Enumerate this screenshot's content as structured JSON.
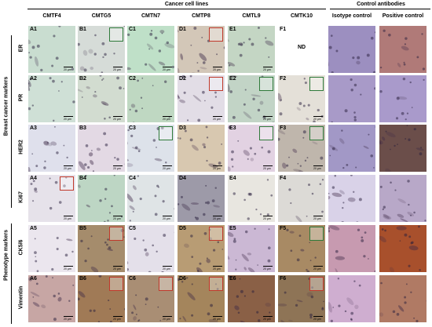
{
  "headers": {
    "group_cancer": "Cancer cell lines",
    "group_control": "Control antibodies",
    "columns": [
      "CMTF4",
      "CMTG5",
      "CMTN7",
      "CMTP8",
      "CMTL9",
      "CMTK10",
      "Isotype control",
      "Positive control"
    ]
  },
  "side_groups": {
    "breast": "Breast cancer markers",
    "phenotype": "Phenotype markers"
  },
  "rows": [
    {
      "label": "ER",
      "cells": [
        {
          "id": "A1",
          "bg": "#c9ddd0",
          "inset": ""
        },
        {
          "id": "B1",
          "bg": "#d6dcd8",
          "inset": "#2f7a3a"
        },
        {
          "id": "C1",
          "bg": "#bfe0c8",
          "inset": ""
        },
        {
          "id": "D1",
          "bg": "#d3c7b8",
          "inset": "#c0392b"
        },
        {
          "id": "E1",
          "bg": "#c4d6c4",
          "inset": ""
        },
        {
          "id": "F1",
          "bg": "#ffffff",
          "inset": "",
          "nd": "ND"
        },
        {
          "id": "",
          "bg": "#9c8fc0",
          "inset": ""
        },
        {
          "id": "",
          "bg": "#b07a78",
          "inset": ""
        }
      ]
    },
    {
      "label": "PR",
      "cells": [
        {
          "id": "A2",
          "bg": "#cfe0d6",
          "inset": ""
        },
        {
          "id": "B2",
          "bg": "#d2dcd0",
          "inset": ""
        },
        {
          "id": "C2",
          "bg": "#bfd8c2",
          "inset": ""
        },
        {
          "id": "D2",
          "bg": "#e2dde6",
          "inset": "#c0392b"
        },
        {
          "id": "E2",
          "bg": "#c2d4c6",
          "inset": "#2f7a3a"
        },
        {
          "id": "F2",
          "bg": "#e4e0d8",
          "inset": "#2f7a3a"
        },
        {
          "id": "",
          "bg": "#a89ac8",
          "inset": ""
        },
        {
          "id": "",
          "bg": "#a99acb",
          "inset": ""
        }
      ]
    },
    {
      "label": "HER2",
      "cells": [
        {
          "id": "A3",
          "bg": "#dfe0ec",
          "inset": ""
        },
        {
          "id": "B3",
          "bg": "#e3d9e4",
          "inset": ""
        },
        {
          "id": "C3",
          "bg": "#dde2ea",
          "inset": "#2f7a3a"
        },
        {
          "id": "D3",
          "bg": "#d8c8b0",
          "inset": ""
        },
        {
          "id": "E3",
          "bg": "#e2d2e2",
          "inset": "#2f7a3a"
        },
        {
          "id": "F3",
          "bg": "#bfb6ac",
          "inset": "#2f7a3a"
        },
        {
          "id": "",
          "bg": "#a298c6",
          "inset": ""
        },
        {
          "id": "",
          "bg": "#6b4e4a",
          "inset": ""
        }
      ]
    },
    {
      "label": "Ki67",
      "cells": [
        {
          "id": "A4",
          "bg": "#e6e2ea",
          "inset": "#c0392b"
        },
        {
          "id": "B4",
          "bg": "#bdd6c4",
          "inset": ""
        },
        {
          "id": "C4",
          "bg": "#dfe4e6",
          "inset": ""
        },
        {
          "id": "D4",
          "bg": "#9d9aa8",
          "inset": ""
        },
        {
          "id": "E4",
          "bg": "#e8e6e0",
          "inset": ""
        },
        {
          "id": "F4",
          "bg": "#dcdad6",
          "inset": ""
        },
        {
          "id": "",
          "bg": "#d9d2e8",
          "inset": ""
        },
        {
          "id": "",
          "bg": "#b8a8c8",
          "inset": ""
        }
      ]
    },
    {
      "label": "CK5/6",
      "cells": [
        {
          "id": "A5",
          "bg": "#ebe6ee",
          "inset": ""
        },
        {
          "id": "B5",
          "bg": "#a58c6c",
          "inset": "#c0392b"
        },
        {
          "id": "C5",
          "bg": "#e4e0ea",
          "inset": ""
        },
        {
          "id": "D5",
          "bg": "#b89c74",
          "inset": "#c0392b"
        },
        {
          "id": "E5",
          "bg": "#cbb8d4",
          "inset": ""
        },
        {
          "id": "F5",
          "bg": "#a88a64",
          "inset": "#2f7a3a"
        },
        {
          "id": "",
          "bg": "#c79ab0",
          "inset": ""
        },
        {
          "id": "",
          "bg": "#a8502c",
          "inset": ""
        }
      ]
    },
    {
      "label": "Vimentin",
      "cells": [
        {
          "id": "A6",
          "bg": "#c7a6a4",
          "inset": ""
        },
        {
          "id": "B6",
          "bg": "#a07a56",
          "inset": "#c0392b"
        },
        {
          "id": "C6",
          "bg": "#a98e74",
          "inset": "#c0392b"
        },
        {
          "id": "D6",
          "bg": "#a4855c",
          "inset": "#c0392b"
        },
        {
          "id": "E6",
          "bg": "#8a6046",
          "inset": ""
        },
        {
          "id": "F6",
          "bg": "#8e7456",
          "inset": "#c0392b"
        },
        {
          "id": "",
          "bg": "#cfaed0",
          "inset": ""
        },
        {
          "id": "",
          "bg": "#b07a64",
          "inset": ""
        }
      ]
    }
  ],
  "scale_text": "20 µm"
}
